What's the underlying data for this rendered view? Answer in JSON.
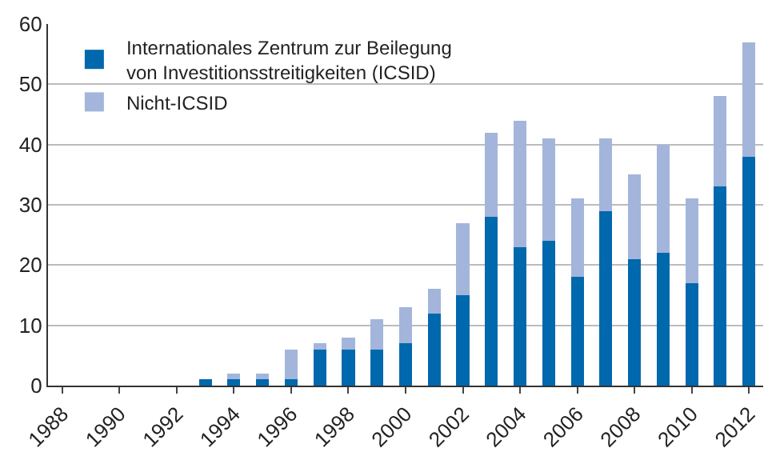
{
  "chart_data": {
    "type": "bar",
    "stacked": true,
    "categories": [
      "1988",
      null,
      "1990",
      null,
      "1992",
      null,
      "1994",
      null,
      "1996",
      null,
      "1998",
      null,
      "2000",
      null,
      "2002",
      null,
      "2004",
      null,
      "2006",
      null,
      "2008",
      null,
      "2010",
      null,
      "2012"
    ],
    "series": [
      {
        "name": "Internationales Zentrum zur Beilegung\nvon Investitionsstreitigkeiten (ICSID)",
        "color": "#0068ac",
        "values": [
          0,
          0,
          0,
          0,
          0,
          1,
          1,
          1,
          1,
          6,
          6,
          6,
          7,
          12,
          15,
          28,
          23,
          24,
          18,
          29,
          21,
          22,
          17,
          33,
          38
        ]
      },
      {
        "name": "Nicht-ICSID",
        "color": "#a3b5da",
        "values": [
          0,
          0,
          0,
          0,
          0,
          0,
          1,
          1,
          5,
          1,
          2,
          5,
          6,
          4,
          12,
          14,
          21,
          17,
          13,
          12,
          14,
          18,
          14,
          15,
          19
        ]
      }
    ],
    "ylim": [
      0,
      60
    ],
    "yticks": [
      0,
      10,
      20,
      30,
      40,
      50,
      60
    ],
    "grid": "y",
    "legend": "top left"
  }
}
